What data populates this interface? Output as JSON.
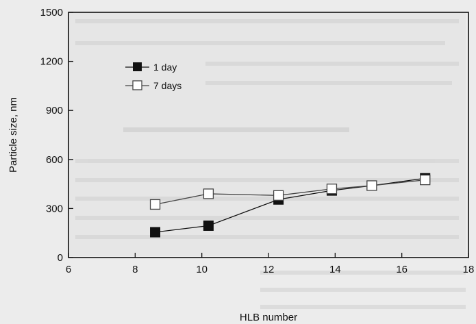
{
  "chart_data": {
    "type": "line",
    "xlabel": "HLB number",
    "ylabel": "Particle size, nm",
    "xlim": [
      6,
      18
    ],
    "ylim": [
      0,
      1500
    ],
    "xticks": [
      6,
      8,
      10,
      12,
      14,
      16,
      18
    ],
    "yticks": [
      0,
      300,
      600,
      900,
      1200,
      1500
    ],
    "grid": false,
    "legend_position": "top-left",
    "series": [
      {
        "name": "1 day",
        "marker": "filled-square",
        "color": "#111111",
        "x": [
          8.6,
          10.2,
          12.3,
          13.9,
          15.1,
          16.7
        ],
        "y": [
          155,
          195,
          355,
          410,
          440,
          485
        ]
      },
      {
        "name": "7 days",
        "marker": "open-square",
        "color": "#444444",
        "x": [
          8.6,
          10.2,
          12.3,
          13.9,
          15.1,
          16.7
        ],
        "y": [
          325,
          390,
          380,
          420,
          440,
          475
        ]
      }
    ]
  }
}
